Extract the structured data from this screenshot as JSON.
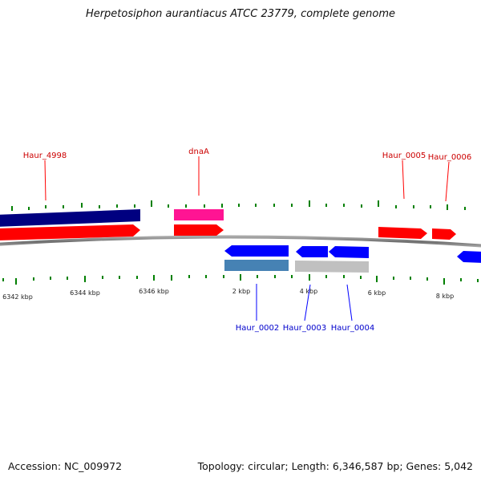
{
  "title": "Herpetosiphon aurantiacus ATCC 23779, complete genome",
  "footer": {
    "accession": "Accession: NC_009972",
    "summary": "Topology: circular; Length: 6,346,587 bp; Genes: 5,042"
  },
  "colors": {
    "forward": "#ff0000",
    "reverse": "#0000ff",
    "highlight": "#ff1493",
    "navy": "#000080",
    "steelblue": "#4682b4",
    "gray": "#c0c0c0",
    "backbone": "#808080",
    "tick": "#008000",
    "forward_label": "#cc0000",
    "reverse_label": "#0000cc"
  },
  "scale_labels": [
    "6342 kbp",
    "6344 kbp",
    "6346 kbp",
    "2 kbp",
    "4 kbp",
    "6 kbp",
    "8 kbp"
  ],
  "gene_labels": {
    "top": [
      "Haur_4998",
      "dnaA",
      "Haur_0005",
      "Haur_0006"
    ],
    "bottom": [
      "Haur_0002",
      "Haur_0003",
      "Haur_0004"
    ]
  }
}
